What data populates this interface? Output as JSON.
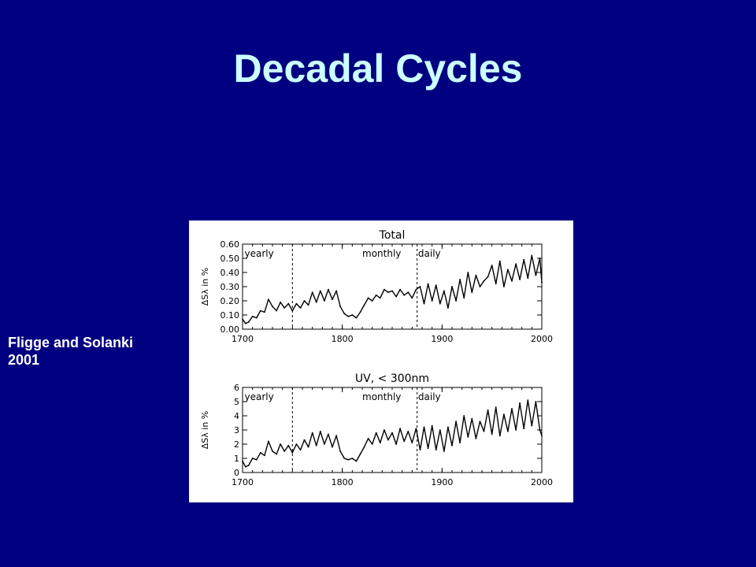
{
  "slide": {
    "title": "Decadal Cycles",
    "citation_line1": "Fligge and Solanki",
    "citation_line2": "2001"
  },
  "colors": {
    "background": "#000080",
    "title": "#ccffff",
    "citation": "#ffffff",
    "figure_background": "#ffffff",
    "ink": "#000000"
  },
  "chart_data": [
    {
      "type": "line",
      "title": "Total",
      "ylabel": "ΔSλ in %",
      "xlim": [
        1700,
        2000
      ],
      "ylim": [
        0.0,
        0.6
      ],
      "xticks": [
        "1700",
        "1800",
        "1900",
        "2000"
      ],
      "yticks": [
        "0.00",
        "0.10",
        "0.20",
        "0.30",
        "0.40",
        "0.50",
        "0.60"
      ],
      "regions": [
        {
          "label": "yearly",
          "x": 1702
        },
        {
          "label": "monthly",
          "x": 1820
        },
        {
          "label": "daily",
          "x": 1876
        }
      ],
      "dividers": [
        1750,
        1875
      ],
      "grid": false,
      "series": [
        {
          "x": [
            1700,
            1703,
            1706,
            1710,
            1714,
            1718,
            1722,
            1726,
            1730,
            1734,
            1738,
            1742,
            1746,
            1750,
            1754,
            1758,
            1762,
            1766,
            1770,
            1774,
            1778,
            1782,
            1786,
            1790,
            1794,
            1798,
            1802,
            1806,
            1810,
            1814,
            1818,
            1822,
            1826,
            1830,
            1834,
            1838,
            1842,
            1846,
            1850,
            1854,
            1858,
            1862,
            1866,
            1870,
            1874,
            1878,
            1882,
            1886,
            1890,
            1894,
            1898,
            1902,
            1906,
            1910,
            1914,
            1918,
            1922,
            1926,
            1930,
            1934,
            1938,
            1942,
            1946,
            1950,
            1954,
            1958,
            1962,
            1966,
            1970,
            1974,
            1978,
            1982,
            1986,
            1990,
            1994,
            1998,
            2000
          ],
          "y": [
            0.07,
            0.04,
            0.05,
            0.09,
            0.08,
            0.13,
            0.12,
            0.21,
            0.16,
            0.13,
            0.19,
            0.15,
            0.18,
            0.13,
            0.18,
            0.15,
            0.2,
            0.17,
            0.26,
            0.19,
            0.27,
            0.2,
            0.28,
            0.21,
            0.27,
            0.16,
            0.11,
            0.09,
            0.1,
            0.08,
            0.12,
            0.17,
            0.22,
            0.2,
            0.24,
            0.22,
            0.28,
            0.26,
            0.27,
            0.23,
            0.28,
            0.24,
            0.26,
            0.22,
            0.28,
            0.3,
            0.18,
            0.32,
            0.2,
            0.31,
            0.18,
            0.27,
            0.15,
            0.3,
            0.2,
            0.35,
            0.22,
            0.4,
            0.26,
            0.38,
            0.3,
            0.34,
            0.37,
            0.45,
            0.32,
            0.48,
            0.3,
            0.42,
            0.34,
            0.46,
            0.35,
            0.49,
            0.36,
            0.52,
            0.38,
            0.5,
            0.33
          ]
        }
      ]
    },
    {
      "type": "line",
      "title": "UV, < 300nm",
      "ylabel": "ΔSλ in %",
      "xlim": [
        1700,
        2000
      ],
      "ylim": [
        0,
        6
      ],
      "xticks": [
        "1700",
        "1800",
        "1900",
        "2000"
      ],
      "yticks": [
        "0",
        "1",
        "2",
        "3",
        "4",
        "5",
        "6"
      ],
      "regions": [
        {
          "label": "yearly",
          "x": 1702
        },
        {
          "label": "monthly",
          "x": 1820
        },
        {
          "label": "daily",
          "x": 1876
        }
      ],
      "dividers": [
        1750,
        1875
      ],
      "grid": false,
      "series": [
        {
          "x": [
            1700,
            1703,
            1706,
            1710,
            1714,
            1718,
            1722,
            1726,
            1730,
            1734,
            1738,
            1742,
            1746,
            1750,
            1754,
            1758,
            1762,
            1766,
            1770,
            1774,
            1778,
            1782,
            1786,
            1790,
            1794,
            1798,
            1802,
            1806,
            1810,
            1814,
            1818,
            1822,
            1826,
            1830,
            1834,
            1838,
            1842,
            1846,
            1850,
            1854,
            1858,
            1862,
            1866,
            1870,
            1874,
            1878,
            1882,
            1886,
            1890,
            1894,
            1898,
            1902,
            1906,
            1910,
            1914,
            1918,
            1922,
            1926,
            1930,
            1934,
            1938,
            1942,
            1946,
            1950,
            1954,
            1958,
            1962,
            1966,
            1970,
            1974,
            1978,
            1982,
            1986,
            1990,
            1994,
            1998,
            2000
          ],
          "y": [
            0.8,
            0.4,
            0.5,
            1.0,
            0.9,
            1.4,
            1.2,
            2.2,
            1.5,
            1.3,
            2.0,
            1.5,
            1.9,
            1.4,
            2.0,
            1.6,
            2.3,
            1.8,
            2.8,
            1.9,
            2.9,
            2.0,
            2.7,
            1.8,
            2.6,
            1.5,
            1.0,
            0.9,
            1.0,
            0.8,
            1.3,
            1.8,
            2.4,
            2.0,
            2.8,
            2.1,
            3.0,
            2.3,
            2.8,
            2.0,
            3.1,
            2.2,
            2.9,
            2.1,
            3.1,
            1.6,
            3.2,
            1.7,
            3.3,
            1.6,
            3.0,
            1.5,
            3.2,
            1.9,
            3.6,
            2.1,
            4.0,
            2.5,
            3.8,
            2.4,
            3.6,
            2.9,
            4.4,
            2.7,
            4.6,
            2.6,
            4.1,
            2.9,
            4.5,
            3.0,
            4.9,
            3.1,
            5.1,
            3.3,
            5.0,
            3.0,
            2.6
          ]
        }
      ]
    }
  ]
}
